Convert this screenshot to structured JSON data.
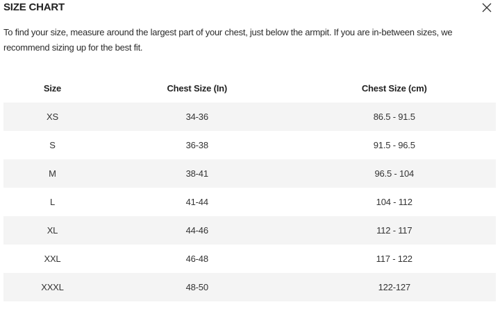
{
  "title": "SIZE CHART",
  "description": "To find your size, measure around the largest part of your chest, just below the armpit. If you are in-between sizes, we recommend sizing up for the best fit.",
  "close_icon": "close-x-icon",
  "table": {
    "headers": [
      "Size",
      "Chest Size (In)",
      "Chest Size (cm)"
    ],
    "rows": [
      [
        "XS",
        "34-36",
        "86.5 - 91.5"
      ],
      [
        "S",
        "36-38",
        "91.5 - 96.5"
      ],
      [
        "M",
        "38-41",
        "96.5 - 104"
      ],
      [
        "L",
        "41-44",
        "104 - 112"
      ],
      [
        "XL",
        "44-46",
        "112 - 117"
      ],
      [
        "XXL",
        "46-48",
        "117 - 122"
      ],
      [
        "XXXL",
        "48-50",
        "122-127"
      ]
    ],
    "stripe_color": "#f4f4f4"
  }
}
